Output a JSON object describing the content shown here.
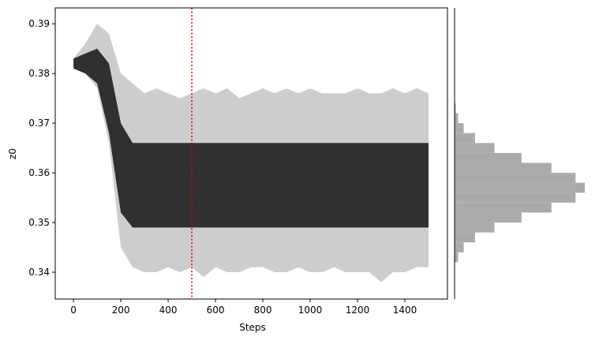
{
  "chart_data": [
    {
      "type": "band",
      "xlabel": "Steps",
      "ylabel": "z0",
      "x": [
        0,
        50,
        100,
        150,
        200,
        250,
        300,
        350,
        400,
        450,
        500,
        550,
        600,
        650,
        700,
        750,
        800,
        850,
        900,
        950,
        1000,
        1050,
        1100,
        1150,
        1200,
        1250,
        1300,
        1350,
        1400,
        1450,
        1500
      ],
      "series": [
        {
          "color": "#c8c8c8",
          "low": [
            0.381,
            0.38,
            0.377,
            0.366,
            0.345,
            0.341,
            0.34,
            0.34,
            0.341,
            0.34,
            0.341,
            0.339,
            0.341,
            0.34,
            0.34,
            0.341,
            0.341,
            0.34,
            0.34,
            0.341,
            0.34,
            0.34,
            0.341,
            0.34,
            0.34,
            0.34,
            0.338,
            0.34,
            0.34,
            0.341,
            0.341
          ],
          "high": [
            0.383,
            0.386,
            0.39,
            0.388,
            0.38,
            0.378,
            0.376,
            0.377,
            0.376,
            0.375,
            0.376,
            0.377,
            0.376,
            0.377,
            0.375,
            0.376,
            0.377,
            0.376,
            0.377,
            0.376,
            0.377,
            0.376,
            0.376,
            0.376,
            0.377,
            0.376,
            0.376,
            0.377,
            0.376,
            0.377,
            0.376
          ]
        },
        {
          "color": "#141414",
          "low": [
            0.381,
            0.38,
            0.378,
            0.368,
            0.352,
            0.349,
            0.349,
            0.349,
            0.349,
            0.349,
            0.349,
            0.349,
            0.349,
            0.349,
            0.349,
            0.349,
            0.349,
            0.349,
            0.349,
            0.349,
            0.349,
            0.349,
            0.349,
            0.349,
            0.349,
            0.349,
            0.349,
            0.349,
            0.349,
            0.349,
            0.349
          ],
          "high": [
            0.383,
            0.384,
            0.385,
            0.382,
            0.37,
            0.366,
            0.366,
            0.366,
            0.366,
            0.366,
            0.366,
            0.366,
            0.366,
            0.366,
            0.366,
            0.366,
            0.366,
            0.366,
            0.366,
            0.366,
            0.366,
            0.366,
            0.366,
            0.366,
            0.366,
            0.366,
            0.366,
            0.366,
            0.366,
            0.366,
            0.366
          ]
        }
      ],
      "vline": {
        "x": 500,
        "color": "#e00000"
      },
      "xlim": [
        -77,
        1580
      ],
      "xticks": [
        0,
        200,
        400,
        600,
        800,
        1000,
        1200,
        1400
      ],
      "ylim": [
        0.3346,
        0.3932
      ],
      "yticks": [
        0.34,
        0.35,
        0.36,
        0.37,
        0.38,
        0.39
      ]
    },
    {
      "type": "histogram",
      "orientation": "horizontal",
      "color": "#aaaaaa",
      "bins": [
        0.342,
        0.344,
        0.346,
        0.348,
        0.35,
        0.352,
        0.354,
        0.356,
        0.358,
        0.36,
        0.362,
        0.364,
        0.366,
        0.368,
        0.37,
        0.372,
        0.374,
        0.376
      ],
      "counts": [
        27,
        70,
        157,
        306,
        514,
        744,
        929,
        1000,
        929,
        744,
        514,
        306,
        157,
        70,
        27,
        9,
        3
      ],
      "xlim": [
        0,
        1000
      ],
      "ylim": [
        0.3346,
        0.3932
      ]
    }
  ]
}
